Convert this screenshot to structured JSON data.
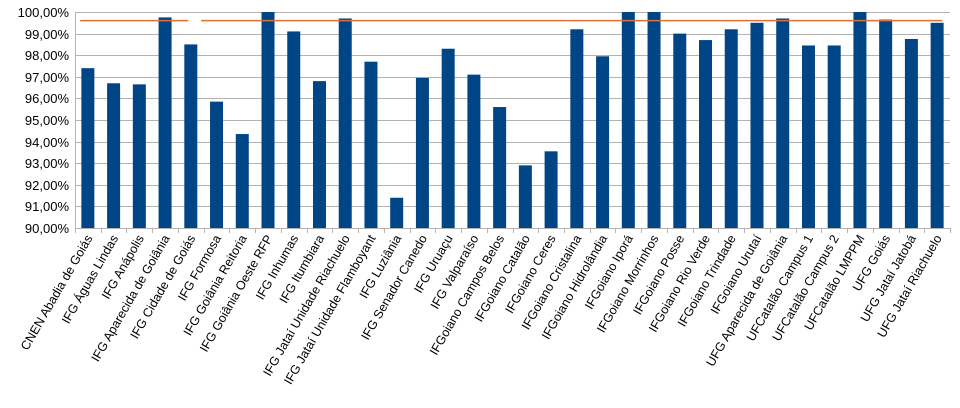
{
  "chart_data": {
    "type": "bar",
    "categories": [
      "CNEN Abadia de Goiás",
      "IFG Águas Lindas",
      "IFG Anápolis",
      "IFG Aparecida de Goiânia",
      "IFG Cidade de Goiás",
      "IFG Formosa",
      "IFG Goiânia Reitoria",
      "IFG Goiânia Oeste RFP",
      "IFG Inhumas",
      "IFG Itumbiara",
      "IFG Jataí Unidade Riachuelo",
      "IFG Jataí Unidade Flamboyant",
      "IFG Luziânia",
      "IFG Senador Canedo",
      "IFG Uruaçu",
      "IFG Valparaíso",
      "IFGoiano Campos Belos",
      "IFGoiano Catalão",
      "IFGoiano Ceres",
      "IFGoiano Cristalina",
      "IFGoiano Hidrolândia",
      "IFGoiano Iporá",
      "IFGoiano Morrinhos",
      "IFGoiano Posse",
      "IFGoiano Rio Verde",
      "IFGoiano Trindade",
      "IFGoiano Urutaí",
      "UFG Aparecida de Goiânia",
      "UFCatalão Campus 1",
      "UFCatalão Campus 2",
      "UFCatalão LMPPM",
      "UFG Goiás",
      "UFG Jataí Jatobá",
      "UFG Jataí Riachuelo"
    ],
    "values": [
      97.4,
      96.7,
      96.65,
      99.75,
      98.5,
      95.85,
      94.35,
      100.0,
      99.1,
      96.8,
      99.7,
      97.7,
      91.4,
      96.95,
      98.3,
      97.1,
      95.6,
      92.9,
      93.55,
      99.2,
      97.95,
      100.0,
      100.0,
      99.0,
      98.7,
      99.2,
      99.5,
      99.7,
      98.45,
      98.45,
      100.0,
      99.65,
      98.75,
      99.5
    ],
    "reference_line": {
      "value": 99.6,
      "color": "#e07035",
      "gap_after_category": 4
    },
    "ylim": [
      90,
      100
    ],
    "yticks": [
      "90,00%",
      "91,00%",
      "92,00%",
      "93,00%",
      "94,00%",
      "95,00%",
      "96,00%",
      "97,00%",
      "98,00%",
      "99,00%",
      "100,00%"
    ],
    "grid": true,
    "bar_color": "#004586",
    "title": "",
    "xlabel": "",
    "ylabel": ""
  }
}
